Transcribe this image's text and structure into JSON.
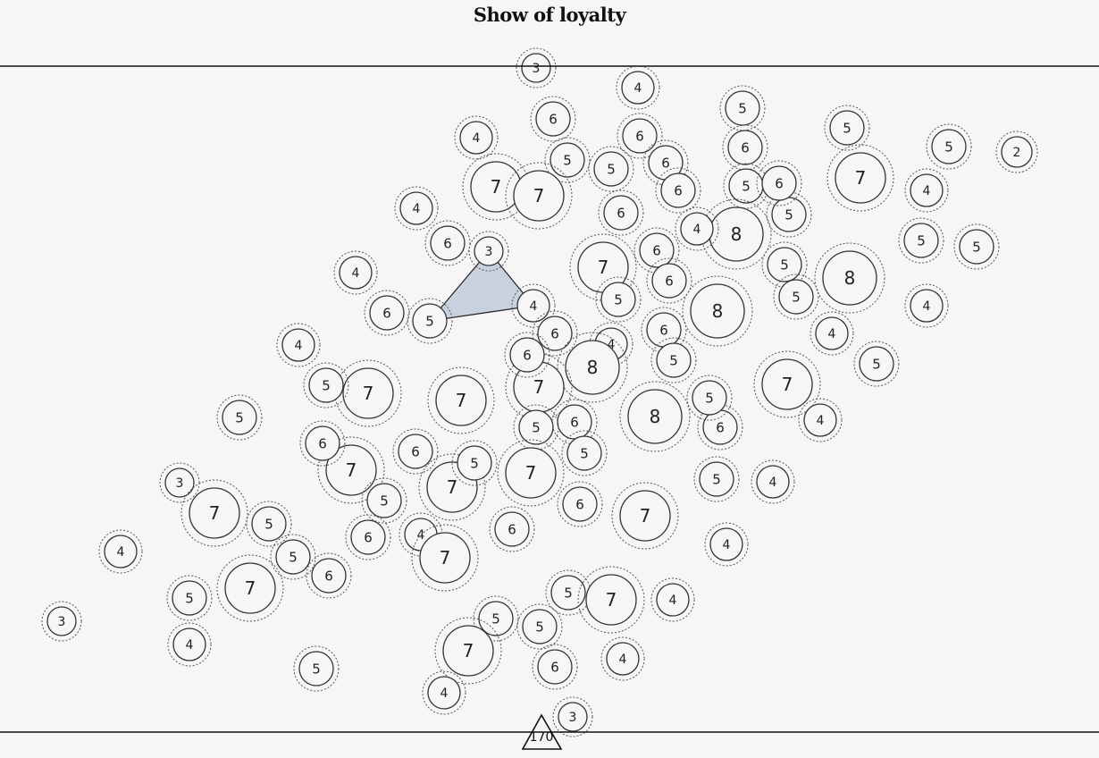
{
  "title": "Show of loyalty",
  "bottom_marker": {
    "label": "170"
  },
  "colors": {
    "background": "#f7f5f6",
    "line": "#111111",
    "node_stroke": "#333333",
    "halo_stroke": "#555555",
    "highlight_fill": "#c9d1de"
  },
  "nodes": [
    "3",
    "4",
    "6",
    "4",
    "5",
    "6",
    "5",
    "6",
    "7",
    "7",
    "5",
    "6",
    "6",
    "5",
    "4",
    "6",
    "5",
    "6",
    "2",
    "4",
    "7",
    "8",
    "4",
    "6",
    "3",
    "6",
    "5",
    "5",
    "4",
    "6",
    "7",
    "5",
    "5",
    "8",
    "8",
    "5",
    "4",
    "6",
    "4",
    "6",
    "4",
    "5",
    "4",
    "8",
    "6",
    "5",
    "5",
    "7",
    "7",
    "4",
    "5",
    "7",
    "8",
    "5",
    "7",
    "5",
    "6",
    "6",
    "5",
    "6",
    "4",
    "5",
    "7",
    "6",
    "7",
    "7",
    "6",
    "3",
    "7",
    "5",
    "5",
    "6",
    "4",
    "4",
    "7",
    "5",
    "6",
    "6",
    "4",
    "5",
    "7",
    "5",
    "6",
    "4",
    "3",
    "5",
    "7",
    "5",
    "5",
    "4",
    "6",
    "4",
    "4",
    "5",
    "3"
  ],
  "highlight_links": [
    [
      24,
      37
    ],
    [
      24,
      28
    ],
    [
      28,
      37
    ]
  ]
}
